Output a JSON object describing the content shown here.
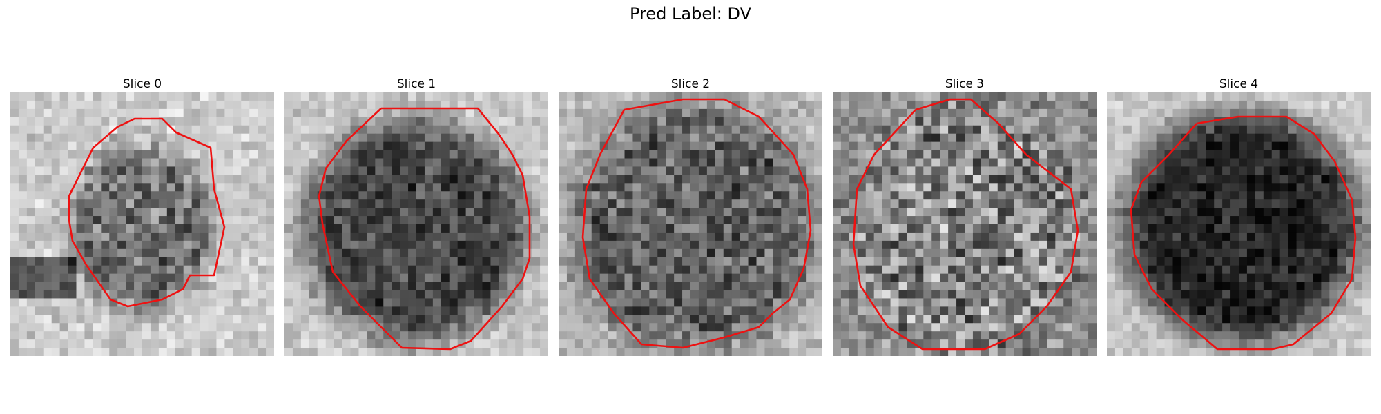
{
  "figure": {
    "title": "Pred Label: DV"
  },
  "slices": [
    {
      "title": "Slice 0",
      "blob": {
        "darkness": 0.55,
        "noise": 0.42
      }
    },
    {
      "title": "Slice 1",
      "blob": {
        "darkness": 0.72,
        "noise": 0.3
      }
    },
    {
      "title": "Slice 2",
      "blob": {
        "darkness": 0.62,
        "noise": 0.4
      }
    },
    {
      "title": "Slice 3",
      "blob": {
        "darkness": 0.48,
        "noise": 0.62
      }
    },
    {
      "title": "Slice 4",
      "blob": {
        "darkness": 0.85,
        "noise": 0.22
      }
    }
  ],
  "colors": {
    "contour": "#ee1111",
    "background": "#ffffff"
  }
}
